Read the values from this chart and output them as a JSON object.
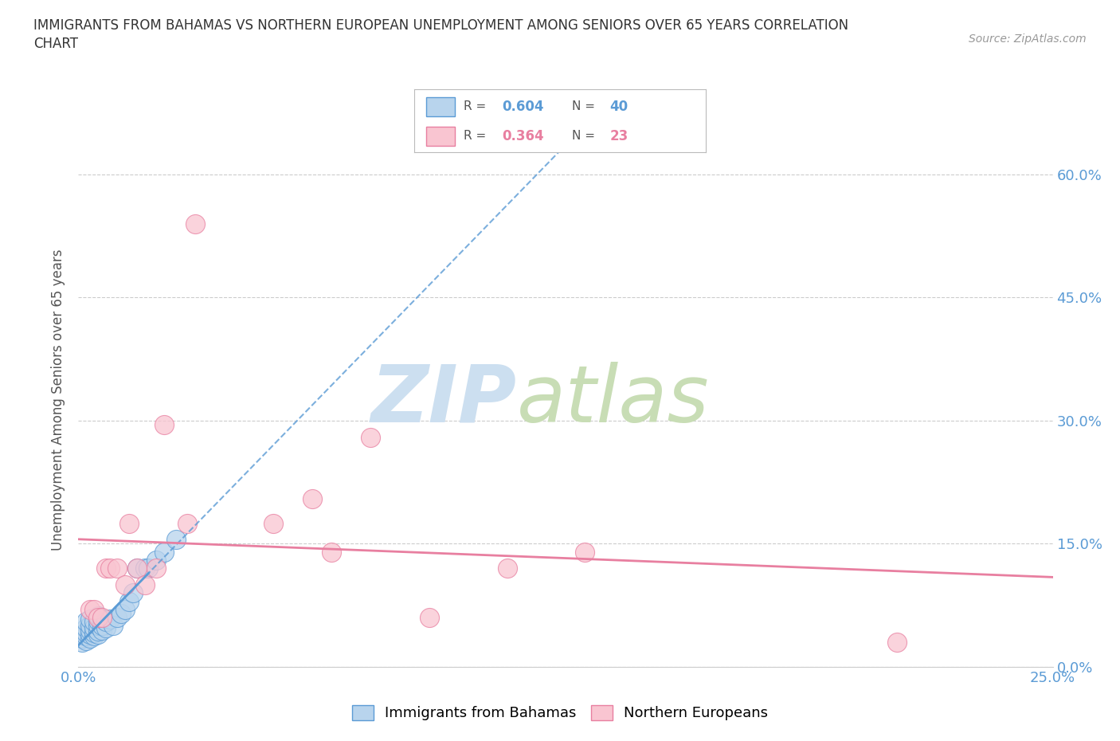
{
  "title_line1": "IMMIGRANTS FROM BAHAMAS VS NORTHERN EUROPEAN UNEMPLOYMENT AMONG SENIORS OVER 65 YEARS CORRELATION",
  "title_line2": "CHART",
  "source_text": "Source: ZipAtlas.com",
  "ylabel": "Unemployment Among Seniors over 65 years",
  "legend_blue_label": "Immigrants from Bahamas",
  "legend_pink_label": "Northern Europeans",
  "R_blue": 0.604,
  "N_blue": 40,
  "R_pink": 0.364,
  "N_pink": 23,
  "blue_fill_color": "#b8d4ed",
  "blue_edge_color": "#5b9bd5",
  "blue_line_color": "#5b9bd5",
  "pink_fill_color": "#f9c5d1",
  "pink_edge_color": "#e87fa0",
  "pink_line_color": "#e87fa0",
  "xlim": [
    0.0,
    0.25
  ],
  "ylim": [
    0.0,
    0.65
  ],
  "background_color": "#ffffff",
  "grid_color": "#cccccc",
  "blue_x": [
    0.001,
    0.001,
    0.001,
    0.002,
    0.002,
    0.002,
    0.002,
    0.002,
    0.003,
    0.003,
    0.003,
    0.003,
    0.003,
    0.004,
    0.004,
    0.004,
    0.004,
    0.005,
    0.005,
    0.005,
    0.005,
    0.005,
    0.006,
    0.006,
    0.006,
    0.007,
    0.007,
    0.008,
    0.009,
    0.01,
    0.011,
    0.012,
    0.013,
    0.014,
    0.015,
    0.017,
    0.018,
    0.02,
    0.022,
    0.025
  ],
  "blue_y": [
    0.03,
    0.035,
    0.04,
    0.032,
    0.038,
    0.042,
    0.048,
    0.055,
    0.035,
    0.04,
    0.045,
    0.05,
    0.058,
    0.038,
    0.042,
    0.048,
    0.055,
    0.04,
    0.044,
    0.05,
    0.056,
    0.062,
    0.045,
    0.05,
    0.058,
    0.048,
    0.055,
    0.058,
    0.05,
    0.06,
    0.065,
    0.07,
    0.08,
    0.09,
    0.12,
    0.12,
    0.12,
    0.13,
    0.14,
    0.155
  ],
  "pink_x": [
    0.003,
    0.004,
    0.005,
    0.006,
    0.007,
    0.008,
    0.01,
    0.012,
    0.013,
    0.015,
    0.017,
    0.02,
    0.022,
    0.028,
    0.05,
    0.06,
    0.065,
    0.075,
    0.09,
    0.11,
    0.13,
    0.21,
    0.03
  ],
  "pink_y": [
    0.07,
    0.07,
    0.06,
    0.06,
    0.12,
    0.12,
    0.12,
    0.1,
    0.175,
    0.12,
    0.1,
    0.12,
    0.295,
    0.175,
    0.175,
    0.205,
    0.14,
    0.28,
    0.06,
    0.12,
    0.14,
    0.03,
    0.54
  ],
  "watermark_zip_color": "#ccdff0",
  "watermark_atlas_color": "#c8ddb5"
}
